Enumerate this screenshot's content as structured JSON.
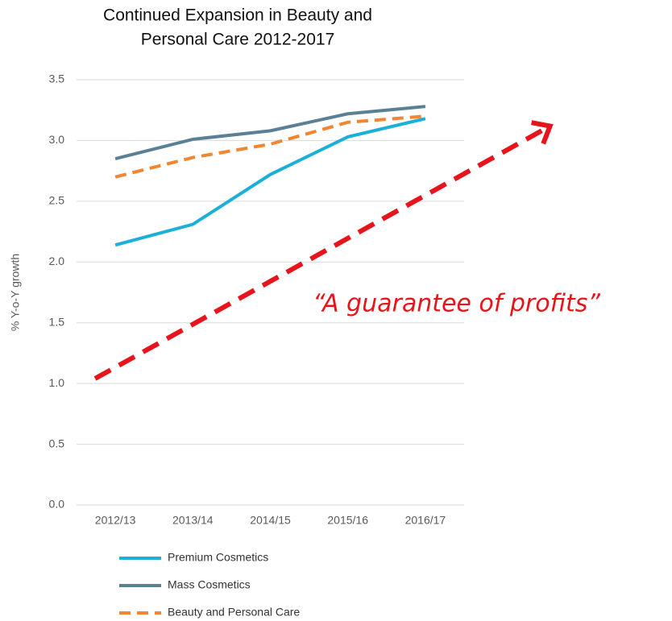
{
  "chart_data": {
    "type": "line",
    "title": [
      "Continued Expansion in Beauty and",
      "Personal Care 2012-2017"
    ],
    "y_label": "% Y-o-Y growth",
    "annotation": "“A guarantee of profits”",
    "categories": [
      "2012/13",
      "2013/14",
      "2014/15",
      "2015/16",
      "2016/17"
    ],
    "series": [
      {
        "name": "Premium Cosmetics",
        "color": "#1ab0d8",
        "dashed": false,
        "values": [
          2.14,
          2.31,
          2.72,
          3.03,
          3.18
        ]
      },
      {
        "name": "Mass Cosmetics",
        "color": "#5b7f95",
        "dashed": false,
        "values": [
          2.85,
          3.01,
          3.08,
          3.22,
          3.28
        ]
      },
      {
        "name": "Beauty and Personal Care",
        "color": "#f28530",
        "dashed": true,
        "values": [
          2.7,
          2.86,
          2.97,
          3.15,
          3.2
        ]
      }
    ],
    "ylim": [
      0,
      3.5
    ],
    "yticks": [
      {
        "value": 0,
        "label": "0.0"
      },
      0.5,
      {
        "value": 1,
        "label": "1.0"
      },
      1.5,
      {
        "value": 2,
        "label": "2.0"
      },
      2.5,
      {
        "value": 3,
        "label": "3.0"
      },
      3.5
    ],
    "grid": true
  }
}
